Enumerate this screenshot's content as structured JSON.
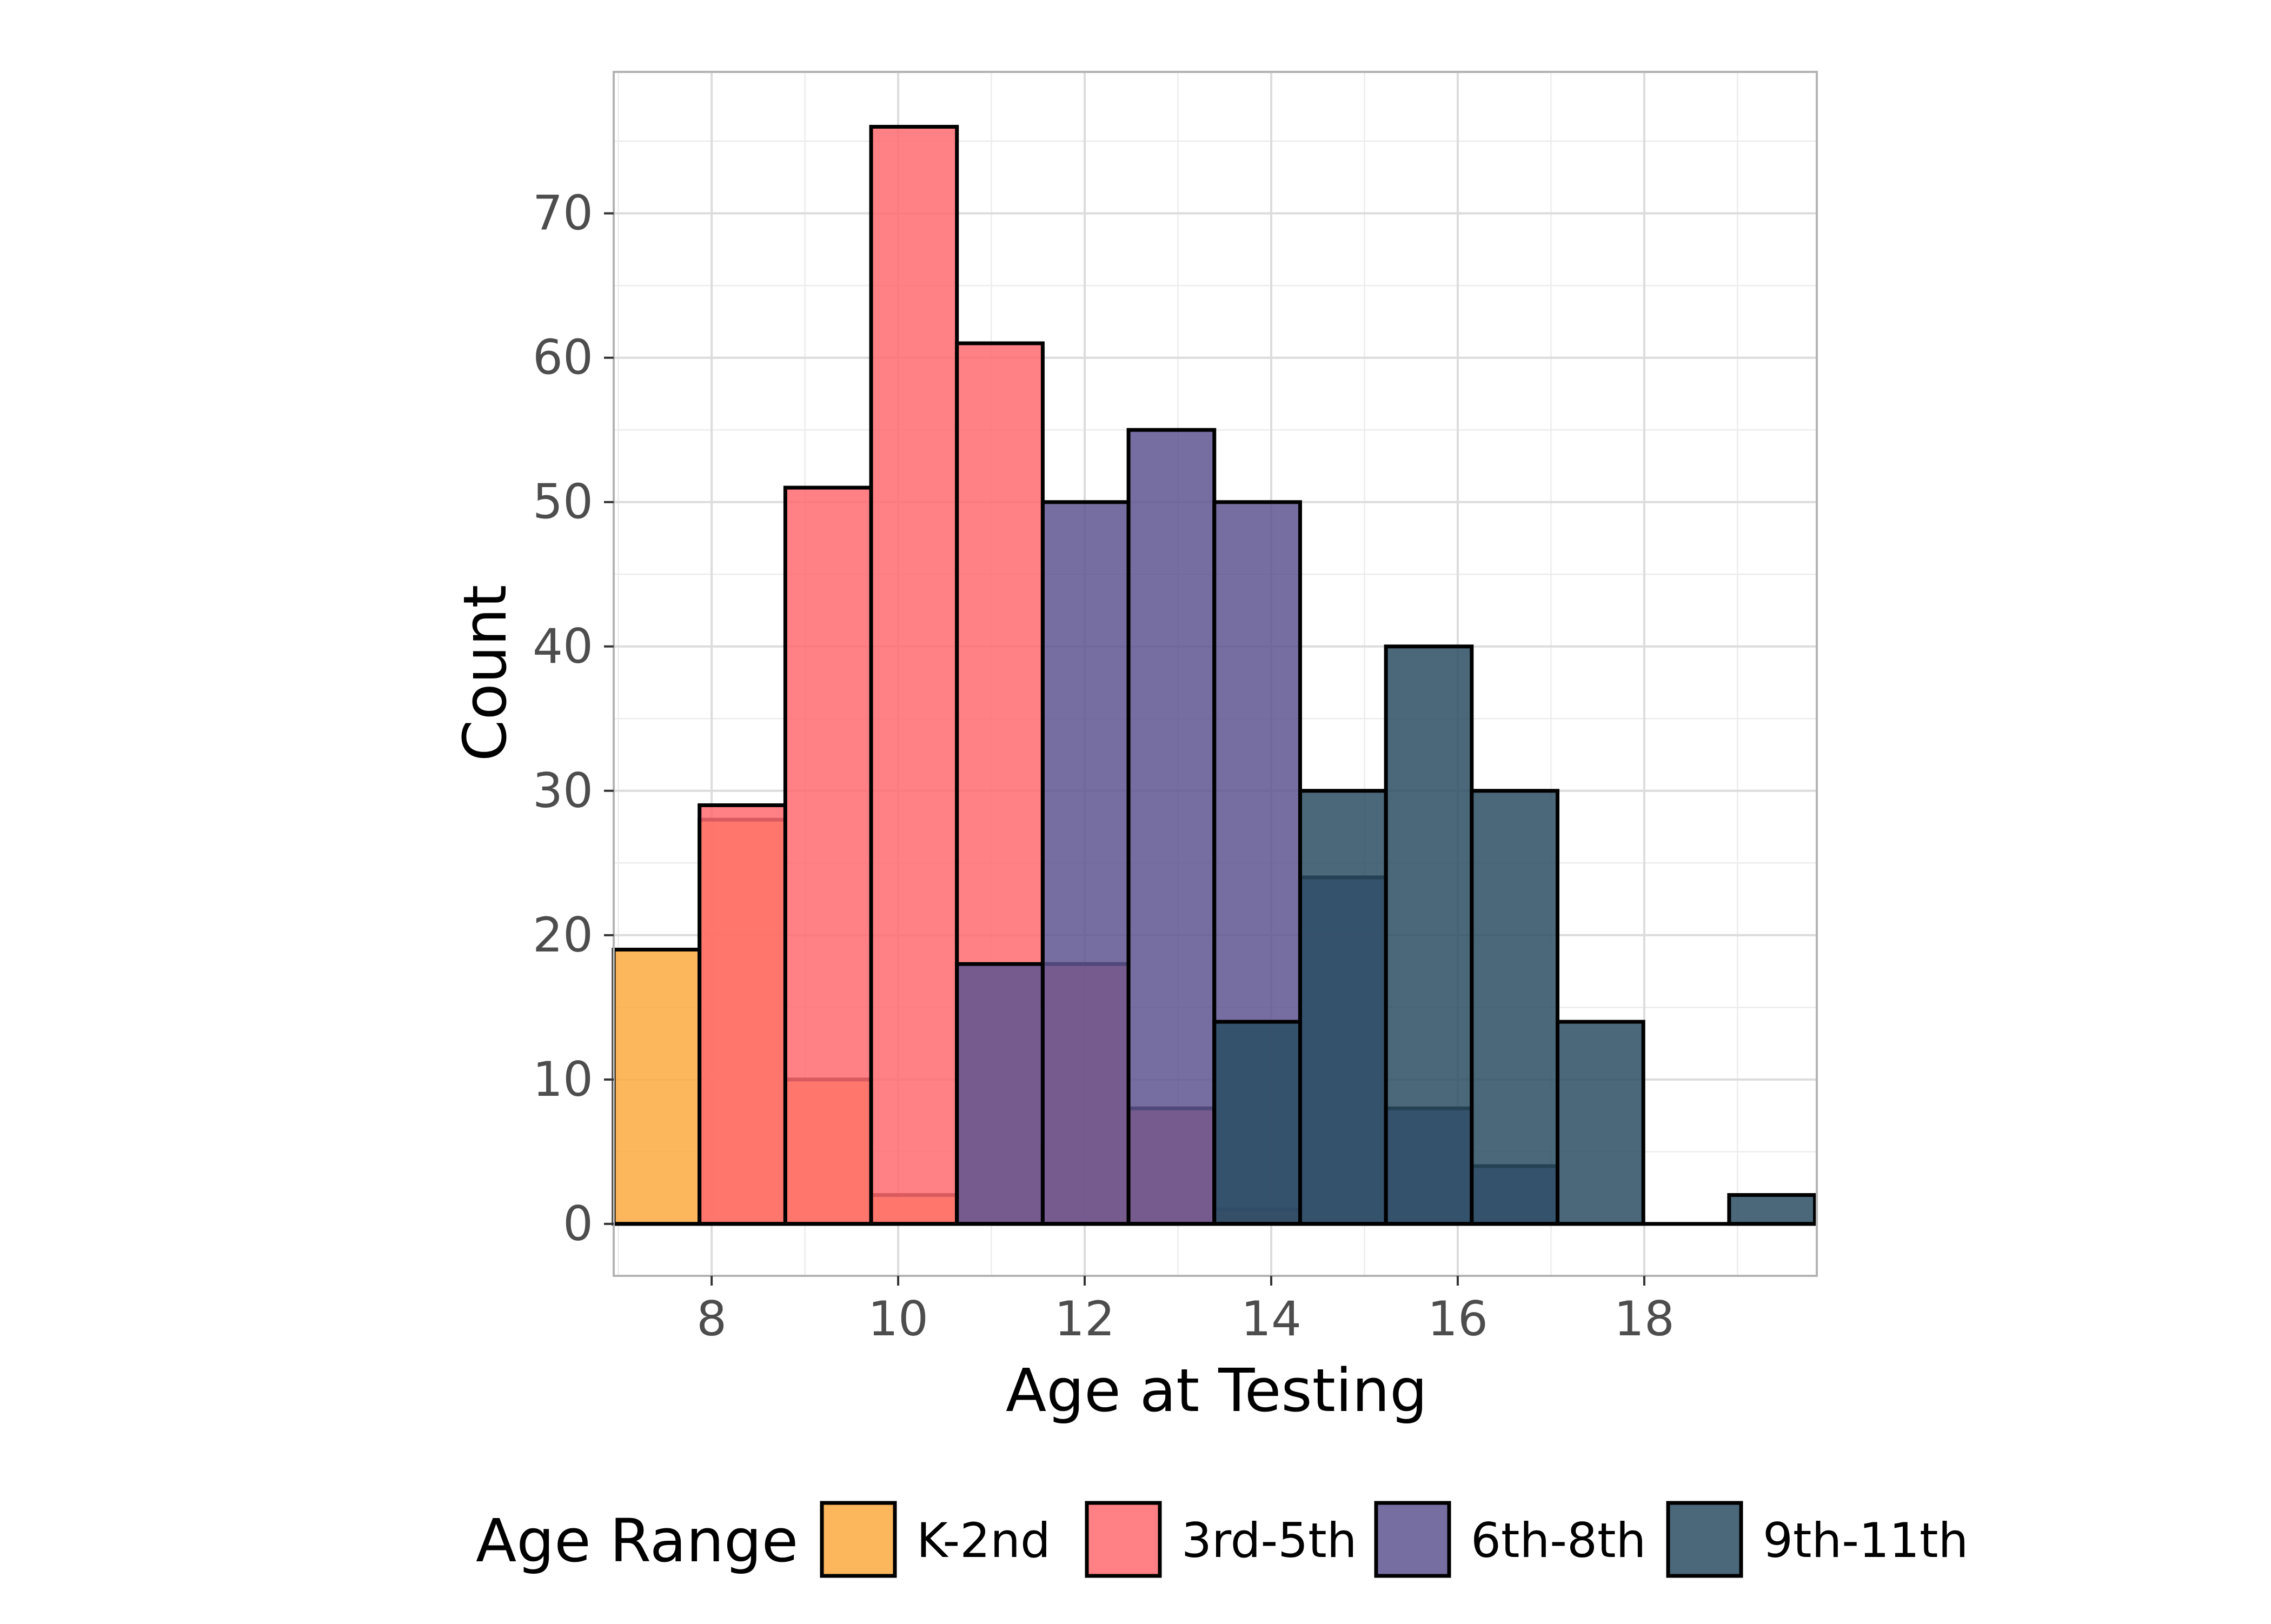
{
  "chart_data": {
    "type": "histogram",
    "title": "",
    "xlabel": "Age at Testing",
    "ylabel": "Count",
    "xlim": [
      6.95,
      19.85
    ],
    "ylim": [
      -3.6,
      79.8
    ],
    "x_ticks": [
      8,
      10,
      12,
      14,
      16,
      18
    ],
    "y_ticks": [
      0,
      10,
      20,
      30,
      40,
      50,
      60,
      70
    ],
    "bin_width": 0.92,
    "grid": true,
    "legend": {
      "title": "Age Range",
      "position": "bottom"
    },
    "series": [
      {
        "name": "K-2nd",
        "color": "#FBA940",
        "bins": [
          {
            "x0": 6.95,
            "x1": 7.87,
            "count": 19
          },
          {
            "x0": 7.87,
            "x1": 8.79,
            "count": 28
          },
          {
            "x0": 8.79,
            "x1": 9.71,
            "count": 10
          },
          {
            "x0": 9.71,
            "x1": 10.63,
            "count": 2
          }
        ]
      },
      {
        "name": "3rd-5th",
        "color": "#FF6B70",
        "bins": [
          {
            "x0": 7.87,
            "x1": 8.79,
            "count": 29
          },
          {
            "x0": 8.79,
            "x1": 9.71,
            "count": 51
          },
          {
            "x0": 9.71,
            "x1": 10.63,
            "count": 76
          },
          {
            "x0": 10.63,
            "x1": 11.55,
            "count": 61
          },
          {
            "x0": 11.55,
            "x1": 12.47,
            "count": 18
          },
          {
            "x0": 12.47,
            "x1": 13.39,
            "count": 8
          },
          {
            "x0": 13.39,
            "x1": 14.31,
            "count": 1
          }
        ]
      },
      {
        "name": "6th-8th",
        "color": "#5E5591",
        "bins": [
          {
            "x0": 10.63,
            "x1": 11.55,
            "count": 18
          },
          {
            "x0": 11.55,
            "x1": 12.47,
            "count": 50
          },
          {
            "x0": 12.47,
            "x1": 13.39,
            "count": 55
          },
          {
            "x0": 13.39,
            "x1": 14.31,
            "count": 50
          },
          {
            "x0": 14.31,
            "x1": 15.23,
            "count": 24
          },
          {
            "x0": 15.23,
            "x1": 16.15,
            "count": 8
          },
          {
            "x0": 16.15,
            "x1": 17.07,
            "count": 4
          }
        ]
      },
      {
        "name": "9th-11th",
        "color": "#2A4D63",
        "bins": [
          {
            "x0": 13.39,
            "x1": 14.31,
            "count": 14
          },
          {
            "x0": 14.31,
            "x1": 15.23,
            "count": 30
          },
          {
            "x0": 15.23,
            "x1": 16.15,
            "count": 40
          },
          {
            "x0": 16.15,
            "x1": 17.07,
            "count": 30
          },
          {
            "x0": 17.07,
            "x1": 17.99,
            "count": 14
          },
          {
            "x0": 17.99,
            "x1": 18.91,
            "count": 0
          },
          {
            "x0": 18.91,
            "x1": 19.83,
            "count": 2
          }
        ]
      }
    ]
  }
}
